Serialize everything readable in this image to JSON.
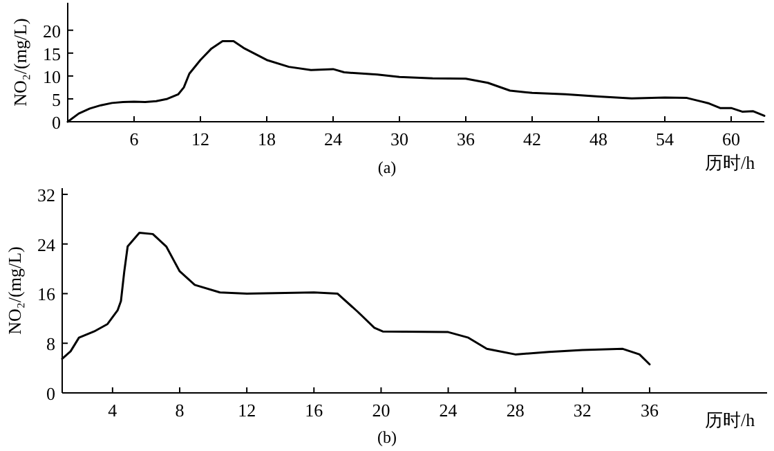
{
  "chart_data": [
    {
      "type": "line",
      "xlabel": "历时/h",
      "ylabel": "NO₂/(mg/L)",
      "annotations": [
        "(a)"
      ],
      "xlim": [
        0,
        63
      ],
      "ylim": [
        0,
        26
      ],
      "xticks": [
        6,
        12,
        18,
        24,
        30,
        36,
        42,
        48,
        54,
        60
      ],
      "yticks": [
        0,
        5,
        10,
        15,
        20
      ],
      "grid": false,
      "marker": "none",
      "line_style": "solid",
      "series": [
        {
          "color": "#000000",
          "x": [
            0,
            1,
            2,
            3,
            4,
            5,
            6,
            7,
            8,
            9,
            10,
            10.5,
            11,
            12,
            13,
            14,
            15,
            16,
            18,
            20,
            22,
            24,
            25,
            28,
            30,
            33,
            36,
            38,
            40,
            42,
            45,
            48,
            51,
            54,
            56,
            58,
            59,
            60,
            61,
            62,
            63
          ],
          "values": [
            0,
            1.8,
            2.9,
            3.6,
            4.1,
            4.3,
            4.4,
            4.3,
            4.5,
            5.0,
            6.0,
            7.5,
            10.5,
            13.5,
            16,
            17.6,
            17.6,
            16,
            13.5,
            12,
            11.3,
            11.5,
            10.8,
            10.3,
            9.8,
            9.5,
            9.4,
            8.5,
            6.8,
            6.3,
            6.0,
            5.5,
            5.1,
            5.3,
            5.2,
            4.0,
            3.0,
            3.0,
            2.2,
            2.3,
            1.3
          ]
        }
      ]
    },
    {
      "type": "line",
      "xlabel": "历时/h",
      "ylabel": "NO₂/(mg/L)",
      "annotations": [
        "(b)"
      ],
      "xlim": [
        1,
        43
      ],
      "ylim": [
        0,
        33
      ],
      "xticks": [
        4,
        8,
        12,
        16,
        20,
        24,
        28,
        32,
        36
      ],
      "yticks": [
        0,
        8,
        16,
        24,
        32
      ],
      "grid": false,
      "marker": "none",
      "line_style": "solid",
      "series": [
        {
          "color": "#000000",
          "x": [
            1.0,
            1.5,
            2.0,
            2.9,
            3.7,
            4.3,
            4.5,
            4.7,
            4.9,
            5.6,
            6.4,
            7.2,
            8.0,
            8.9,
            10.4,
            12,
            16,
            17.4,
            18.6,
            19.6,
            20.1,
            24,
            25.2,
            26.3,
            28,
            30,
            32,
            34.4,
            35.4,
            36
          ],
          "values": [
            5.5,
            6.7,
            8.9,
            9.9,
            11.1,
            13.3,
            14.8,
            19.6,
            23.6,
            25.8,
            25.6,
            23.6,
            19.6,
            17.4,
            16.2,
            16,
            16.2,
            16.0,
            13.1,
            10.5,
            9.9,
            9.8,
            8.9,
            7.1,
            6.2,
            6.6,
            6.9,
            7.1,
            6.2,
            4.6
          ]
        }
      ]
    }
  ]
}
